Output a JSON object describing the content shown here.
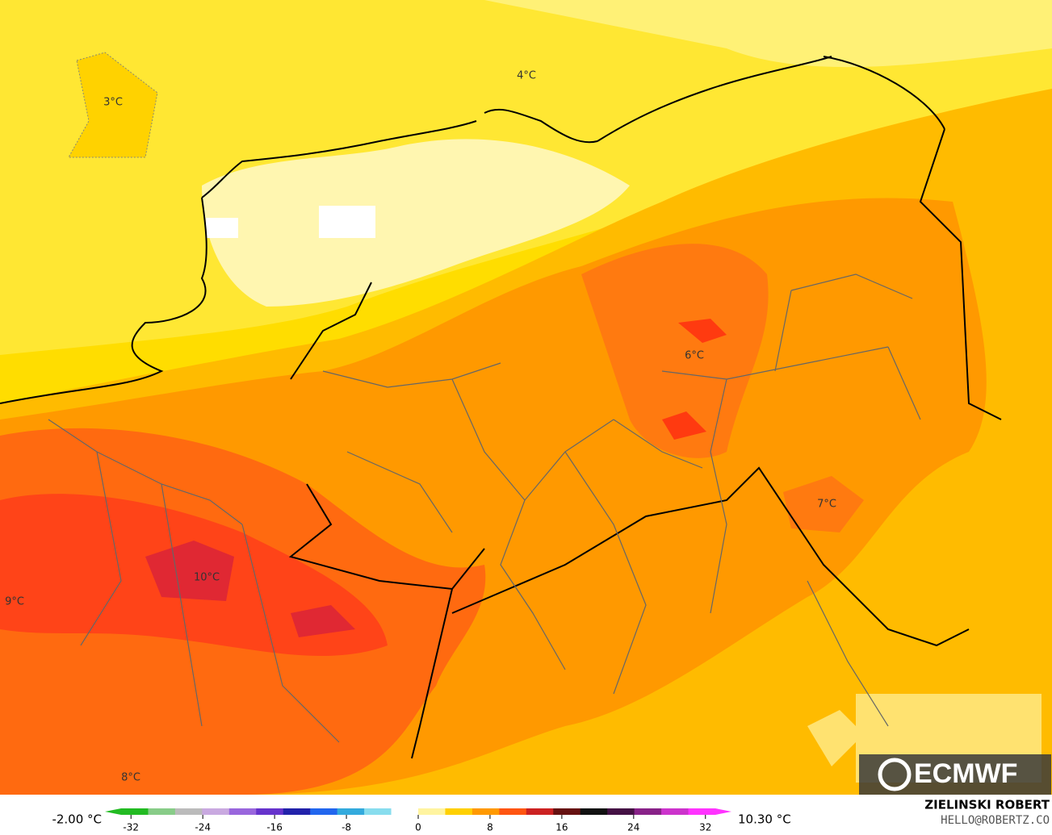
{
  "map": {
    "contour_labels": [
      "3°C",
      "4°C",
      "6°C",
      "7°C",
      "10°C",
      "9°C",
      "8°C"
    ]
  },
  "colorbar": {
    "min_label": "-2.00 °C",
    "max_label": "10.30 °C",
    "lim": [
      -34,
      34
    ],
    "ticks": [
      -32,
      -24,
      -16,
      -8,
      0,
      8,
      16,
      24,
      32
    ],
    "colors": [
      "#22bb22",
      "#88cc88",
      "#bbbbbb",
      "#c9a9e0",
      "#9966dd",
      "#6633cc",
      "#2222aa",
      "#2266ee",
      "#33aadd",
      "#88ddee",
      "#ffffff",
      "#fff4a0",
      "#ffd000",
      "#ff9900",
      "#ff5511",
      "#cc2222",
      "#661111",
      "#111111",
      "#441144",
      "#882288",
      "#cc33cc",
      "#ff33ff"
    ]
  },
  "logo": "ECMWF",
  "credit": {
    "name": "ZIELINSKI ROBERT",
    "email": "HELLO@ROBERTZ.CO"
  }
}
